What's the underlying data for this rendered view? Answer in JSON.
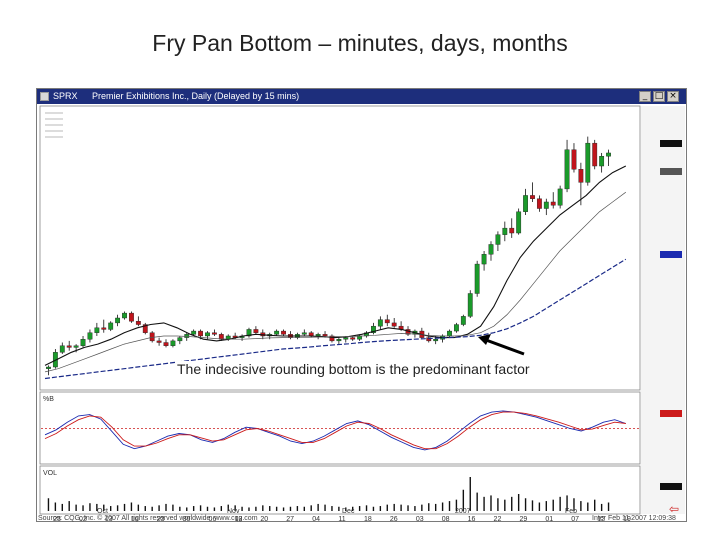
{
  "slide": {
    "title": "Fry Pan Bottom – minutes, days, months",
    "caption": "The indecisive rounding bottom is the predominant factor"
  },
  "window": {
    "symbol": "SPRX",
    "title": "Premier Exhibitions Inc., Daily (Delayed by 15 mins)",
    "buttons": [
      "_",
      "□",
      "×"
    ]
  },
  "indicators": {
    "oscillator_label": "%B",
    "volume_label": "VOL"
  },
  "axis": {
    "month_labels": [
      "Oct",
      "Nov",
      "Dec",
      "2007",
      "Feb"
    ],
    "day_labels": [
      "23",
      "02",
      "13",
      "16",
      "23",
      "30",
      "06",
      "13",
      "20",
      "27",
      "04",
      "11",
      "18",
      "26",
      "03",
      "08",
      "16",
      "22",
      "29",
      "01",
      "07",
      "12",
      "19"
    ]
  },
  "footer": {
    "left": "Source: CQG, Inc. © 2007 All rights reserved worldwide. www.cqg.com",
    "right": "Inter Feb 11 2007 12:09:38"
  },
  "colors": {
    "up_candle": "#1a9a2a",
    "down_candle": "#c0141c",
    "ma_fast": "#111111",
    "ma_mid": "#555555",
    "ma_slow": "#1a2a88",
    "osc_red": "#cc1a1a",
    "osc_blue": "#1a2ab0",
    "titlebar": "#1d2e7c"
  },
  "chart_data": {
    "type": "candlestick",
    "x_labels": [
      "23",
      "02",
      "13",
      "16",
      "23",
      "30",
      "06",
      "13",
      "20",
      "27",
      "04",
      "11",
      "18",
      "26",
      "03",
      "08",
      "16",
      "22",
      "29",
      "01",
      "07",
      "12",
      "19"
    ],
    "ohlc": [
      [
        5.3,
        5.4,
        5.1,
        5.35
      ],
      [
        5.35,
        5.9,
        5.3,
        5.8
      ],
      [
        5.8,
        6.1,
        5.75,
        6.0
      ],
      [
        6.0,
        6.15,
        5.85,
        5.95
      ],
      [
        5.95,
        6.05,
        5.8,
        6.0
      ],
      [
        6.0,
        6.3,
        5.95,
        6.2
      ],
      [
        6.2,
        6.5,
        6.1,
        6.4
      ],
      [
        6.4,
        6.7,
        6.3,
        6.55
      ],
      [
        6.55,
        6.8,
        6.4,
        6.5
      ],
      [
        6.5,
        6.75,
        6.45,
        6.7
      ],
      [
        6.7,
        6.95,
        6.6,
        6.85
      ],
      [
        6.85,
        7.05,
        6.8,
        7.0
      ],
      [
        7.0,
        7.05,
        6.7,
        6.75
      ],
      [
        6.75,
        6.9,
        6.6,
        6.65
      ],
      [
        6.65,
        6.7,
        6.35,
        6.4
      ],
      [
        6.4,
        6.45,
        6.1,
        6.15
      ],
      [
        6.15,
        6.25,
        6.0,
        6.1
      ],
      [
        6.1,
        6.2,
        5.95,
        6.0
      ],
      [
        6.0,
        6.2,
        5.95,
        6.15
      ],
      [
        6.15,
        6.3,
        6.05,
        6.25
      ],
      [
        6.25,
        6.4,
        6.15,
        6.35
      ],
      [
        6.35,
        6.5,
        6.3,
        6.45
      ],
      [
        6.45,
        6.5,
        6.2,
        6.3
      ],
      [
        6.3,
        6.45,
        6.2,
        6.4
      ],
      [
        6.4,
        6.5,
        6.3,
        6.35
      ],
      [
        6.35,
        6.4,
        6.15,
        6.2
      ],
      [
        6.2,
        6.35,
        6.15,
        6.3
      ],
      [
        6.3,
        6.4,
        6.2,
        6.25
      ],
      [
        6.25,
        6.35,
        6.15,
        6.3
      ],
      [
        6.3,
        6.55,
        6.25,
        6.5
      ],
      [
        6.5,
        6.6,
        6.35,
        6.4
      ],
      [
        6.4,
        6.5,
        6.2,
        6.3
      ],
      [
        6.3,
        6.4,
        6.2,
        6.35
      ],
      [
        6.35,
        6.5,
        6.3,
        6.45
      ],
      [
        6.45,
        6.5,
        6.3,
        6.35
      ],
      [
        6.35,
        6.45,
        6.2,
        6.25
      ],
      [
        6.25,
        6.4,
        6.2,
        6.35
      ],
      [
        6.35,
        6.5,
        6.3,
        6.4
      ],
      [
        6.4,
        6.45,
        6.25,
        6.3
      ],
      [
        6.3,
        6.4,
        6.2,
        6.35
      ],
      [
        6.35,
        6.45,
        6.25,
        6.3
      ],
      [
        6.3,
        6.35,
        6.1,
        6.15
      ],
      [
        6.15,
        6.25,
        6.05,
        6.2
      ],
      [
        6.2,
        6.3,
        6.1,
        6.25
      ],
      [
        6.25,
        6.3,
        6.15,
        6.2
      ],
      [
        6.2,
        6.35,
        6.15,
        6.3
      ],
      [
        6.3,
        6.45,
        6.25,
        6.4
      ],
      [
        6.4,
        6.7,
        6.35,
        6.6
      ],
      [
        6.6,
        6.9,
        6.5,
        6.8
      ],
      [
        6.8,
        6.95,
        6.6,
        6.7
      ],
      [
        6.7,
        6.85,
        6.55,
        6.6
      ],
      [
        6.6,
        6.75,
        6.45,
        6.5
      ],
      [
        6.5,
        6.6,
        6.3,
        6.35
      ],
      [
        6.35,
        6.5,
        6.25,
        6.45
      ],
      [
        6.45,
        6.55,
        6.2,
        6.25
      ],
      [
        6.25,
        6.4,
        6.1,
        6.15
      ],
      [
        6.15,
        6.3,
        6.05,
        6.2
      ],
      [
        6.2,
        6.35,
        6.1,
        6.3
      ],
      [
        6.3,
        6.5,
        6.25,
        6.45
      ],
      [
        6.45,
        6.7,
        6.4,
        6.65
      ],
      [
        6.65,
        6.95,
        6.6,
        6.9
      ],
      [
        6.9,
        7.7,
        6.85,
        7.6
      ],
      [
        7.6,
        8.6,
        7.5,
        8.5
      ],
      [
        8.5,
        8.9,
        8.3,
        8.8
      ],
      [
        8.8,
        9.2,
        8.6,
        9.1
      ],
      [
        9.1,
        9.5,
        8.9,
        9.4
      ],
      [
        9.4,
        9.8,
        9.2,
        9.6
      ],
      [
        9.6,
        9.9,
        9.3,
        9.45
      ],
      [
        9.45,
        10.2,
        9.4,
        10.1
      ],
      [
        10.1,
        10.8,
        10.0,
        10.6
      ],
      [
        10.6,
        11.0,
        10.4,
        10.5
      ],
      [
        10.5,
        10.6,
        10.1,
        10.2
      ],
      [
        10.2,
        10.5,
        10.0,
        10.4
      ],
      [
        10.4,
        10.7,
        10.2,
        10.3
      ],
      [
        10.3,
        10.9,
        10.2,
        10.8
      ],
      [
        10.8,
        12.3,
        10.7,
        12.0
      ],
      [
        12.0,
        12.2,
        11.3,
        11.4
      ],
      [
        11.4,
        11.6,
        10.3,
        11.0
      ],
      [
        11.0,
        12.4,
        10.9,
        12.2
      ],
      [
        12.2,
        12.3,
        11.4,
        11.5
      ],
      [
        11.5,
        11.9,
        11.3,
        11.8
      ],
      [
        11.8,
        12.0,
        11.5,
        11.9
      ]
    ],
    "moving_averages": [
      {
        "name": "MA fast",
        "values": [
          5.4,
          5.6,
          5.8,
          5.95,
          6.05,
          6.2,
          6.4,
          6.55,
          6.65,
          6.7,
          6.55,
          6.35,
          6.2,
          6.15,
          6.2,
          6.3,
          6.35,
          6.32,
          6.3,
          6.3,
          6.3,
          6.28,
          6.25,
          6.28,
          6.35,
          6.45,
          6.55,
          6.5,
          6.4,
          6.3,
          6.25,
          6.25,
          6.35,
          6.6,
          7.2,
          8.0,
          8.7,
          9.2,
          9.6,
          10.0,
          10.3,
          10.6,
          11.0,
          11.3,
          11.5
        ]
      },
      {
        "name": "MA mid",
        "values": [
          5.2,
          5.3,
          5.45,
          5.6,
          5.75,
          5.9,
          6.05,
          6.15,
          6.25,
          6.3,
          6.3,
          6.28,
          6.25,
          6.22,
          6.2,
          6.2,
          6.22,
          6.24,
          6.25,
          6.26,
          6.26,
          6.27,
          6.28,
          6.28,
          6.3,
          6.32,
          6.35,
          6.38,
          6.36,
          6.32,
          6.3,
          6.3,
          6.32,
          6.4,
          6.6,
          6.95,
          7.4,
          7.9,
          8.4,
          8.9,
          9.3,
          9.7,
          10.1,
          10.4,
          10.7
        ]
      },
      {
        "name": "MA slow",
        "values": [
          5.0,
          5.05,
          5.1,
          5.15,
          5.2,
          5.25,
          5.3,
          5.35,
          5.4,
          5.45,
          5.5,
          5.55,
          5.6,
          5.65,
          5.7,
          5.75,
          5.8,
          5.85,
          5.9,
          5.93,
          5.96,
          6.0,
          6.03,
          6.06,
          6.1,
          6.13,
          6.16,
          6.18,
          6.2,
          6.22,
          6.24,
          6.26,
          6.28,
          6.32,
          6.4,
          6.52,
          6.7,
          6.9,
          7.15,
          7.4,
          7.65,
          7.9,
          8.15,
          8.4,
          8.65
        ]
      }
    ],
    "oscillator": {
      "line_a": [
        40,
        48,
        60,
        70,
        72,
        65,
        45,
        25,
        18,
        22,
        30,
        38,
        42,
        40,
        32,
        28,
        34,
        44,
        52,
        50,
        44,
        38,
        30,
        26,
        30,
        38,
        48,
        58,
        62,
        56,
        46,
        36,
        28,
        20,
        16,
        20,
        30,
        44,
        58,
        70,
        76,
        78,
        76,
        72,
        68,
        62,
        56,
        50,
        46,
        52,
        60,
        64,
        58
      ],
      "line_b": [
        34,
        42,
        54,
        64,
        70,
        68,
        52,
        32,
        22,
        22,
        27,
        34,
        40,
        40,
        35,
        30,
        32,
        40,
        48,
        50,
        46,
        40,
        34,
        28,
        28,
        34,
        44,
        54,
        60,
        58,
        50,
        40,
        32,
        24,
        18,
        18,
        26,
        38,
        52,
        64,
        72,
        76,
        76,
        74,
        70,
        65,
        60,
        54,
        48,
        49,
        55,
        60,
        58
      ],
      "reference_level": 50
    },
    "volume": [
      18,
      12,
      10,
      14,
      9,
      8,
      11,
      10,
      9,
      7,
      8,
      10,
      12,
      9,
      7,
      6,
      8,
      10,
      9,
      6,
      5,
      7,
      8,
      6,
      5,
      7,
      9,
      8,
      6,
      5,
      6,
      8,
      7,
      6,
      5,
      6,
      7,
      6,
      8,
      10,
      9,
      7,
      6,
      5,
      6,
      7,
      8,
      6,
      7,
      9,
      10,
      9,
      8,
      7,
      9,
      11,
      10,
      12,
      14,
      16,
      30,
      48,
      26,
      20,
      22,
      18,
      16,
      20,
      24,
      18,
      15,
      12,
      14,
      16,
      20,
      22,
      18,
      14,
      12,
      16,
      10,
      12
    ],
    "price_ylim": [
      4.8,
      13.0
    ]
  }
}
